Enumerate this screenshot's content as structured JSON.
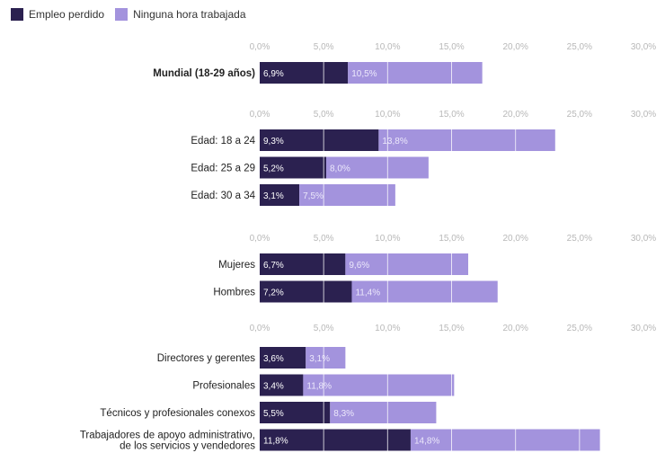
{
  "colors": {
    "lost": "#2b2150",
    "no_hours": "#a393dd",
    "grid": "#ffffff",
    "tick": "#b8b8b8",
    "label": "#333333"
  },
  "legend": [
    {
      "label": "Empleo perdido",
      "color": "#2b2150"
    },
    {
      "label": "Ninguna hora trabajada",
      "color": "#a393dd"
    }
  ],
  "chart_data": {
    "type": "bar",
    "orientation": "horizontal",
    "stacked": true,
    "series_names": [
      "Empleo perdido",
      "Ninguna hora trabajada"
    ],
    "xlim": [
      0,
      30
    ],
    "ticks": [
      "0,0%",
      "5,0%",
      "10,0%",
      "15,0%",
      "20,0%",
      "25,0%",
      "30,0%"
    ],
    "grid": true,
    "legend_position": "top-left",
    "panels": [
      {
        "rows": [
          {
            "label": "Mundial (18-29 años)",
            "bold": true,
            "values": [
              6.9,
              10.5
            ],
            "value_labels": [
              "6,9%",
              "10,5%"
            ]
          }
        ]
      },
      {
        "rows": [
          {
            "label": "Edad: 18 a 24",
            "values": [
              9.3,
              13.8
            ],
            "value_labels": [
              "9,3%",
              "13,8%"
            ]
          },
          {
            "label": "Edad: 25 a 29",
            "values": [
              5.2,
              8.0
            ],
            "value_labels": [
              "5,2%",
              "8,0%"
            ]
          },
          {
            "label": "Edad: 30 a 34",
            "values": [
              3.1,
              7.5
            ],
            "value_labels": [
              "3,1%",
              "7,5%"
            ]
          }
        ]
      },
      {
        "rows": [
          {
            "label": "Mujeres",
            "values": [
              6.7,
              9.6
            ],
            "value_labels": [
              "6,7%",
              "9,6%"
            ]
          },
          {
            "label": "Hombres",
            "values": [
              7.2,
              11.4
            ],
            "value_labels": [
              "7,2%",
              "11,4%"
            ]
          }
        ]
      },
      {
        "rows": [
          {
            "label": "Directores y gerentes",
            "values": [
              3.6,
              3.1
            ],
            "value_labels": [
              "3,6%",
              "3,1%"
            ]
          },
          {
            "label": "Profesionales",
            "values": [
              3.4,
              11.8
            ],
            "value_labels": [
              "3,4%",
              "11,8%"
            ]
          },
          {
            "label": "Técnicos y profesionales conexos",
            "values": [
              5.5,
              8.3
            ],
            "value_labels": [
              "5,5%",
              "8,3%"
            ]
          },
          {
            "label": "Trabajadores de apoyo administrativo,\nde los servicios y vendedores",
            "values": [
              11.8,
              14.8
            ],
            "value_labels": [
              "11,8%",
              "14,8%"
            ]
          }
        ]
      }
    ]
  }
}
